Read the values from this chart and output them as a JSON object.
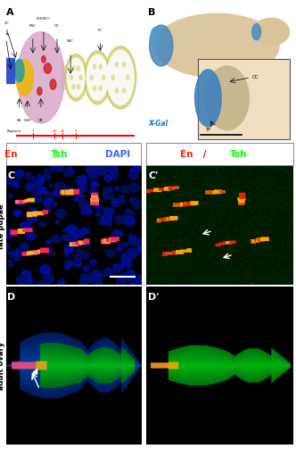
{
  "figure_width": 3.32,
  "figure_height": 5.03,
  "dpi": 100,
  "bg_white": "#ffffff",
  "bg_cream": "#f5e6c8",
  "header_left_text": [
    {
      "text": "En",
      "color": "#ff2200"
    },
    {
      "text": " / ",
      "color": "#ffffff"
    },
    {
      "text": "Tsh",
      "color": "#00ff00"
    },
    {
      "text": " / ",
      "color": "#ffffff"
    },
    {
      "text": "DAPI",
      "color": "#3366ff"
    }
  ],
  "header_right_text": [
    {
      "text": "En",
      "color": "#ff2200"
    },
    {
      "text": " / ",
      "color": "#ff0000"
    },
    {
      "text": "Tsh",
      "color": "#00ff00"
    }
  ],
  "side_label_pupae": "late pupae",
  "side_label_ovary": "adult ovary",
  "xgal_color": "#1a6fcc",
  "label_fontsize": 8
}
